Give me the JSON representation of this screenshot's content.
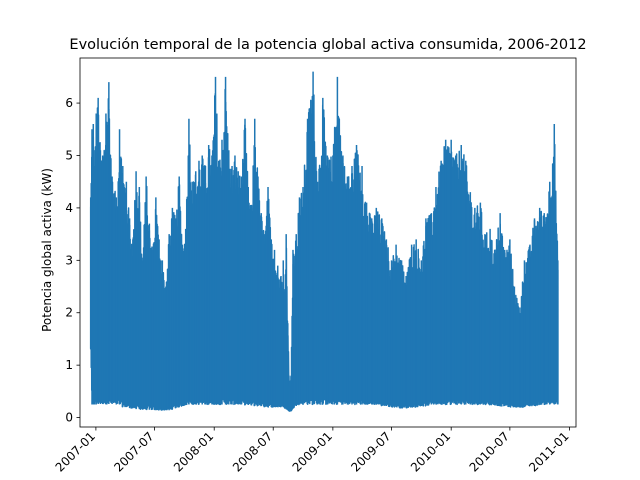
{
  "chart_data": {
    "type": "line",
    "title": "Evolución temporal de la potencia global activa consumida, 2006-2012",
    "xlabel": "",
    "ylabel": "Potencia global activa (kW)",
    "xlim": [
      "2006-11-13",
      "2011-01-21"
    ],
    "ylim": [
      -0.18,
      6.86
    ],
    "x_ticks": [
      "2007-01",
      "2007-07",
      "2008-01",
      "2008-07",
      "2009-01",
      "2009-07",
      "2010-01",
      "2010-07",
      "2011-01"
    ],
    "y_ticks": [
      0,
      1,
      2,
      3,
      4,
      5,
      6
    ],
    "grid": false,
    "legend": "none",
    "colors": {
      "line": "#1f77b4"
    },
    "series": [
      {
        "x": [
          "2006-12-16",
          "2006-12-20",
          "2006-12-24",
          "2006-12-28",
          "2007-01-02",
          "2007-01-08",
          "2007-01-15",
          "2007-01-22",
          "2007-02-01",
          "2007-02-10",
          "2007-02-20",
          "2007-03-05",
          "2007-03-15",
          "2007-03-25",
          "2007-04-05",
          "2007-04-15",
          "2007-04-25",
          "2007-05-05",
          "2007-05-15",
          "2007-05-25",
          "2007-06-05",
          "2007-06-15",
          "2007-06-25",
          "2007-07-05",
          "2007-07-15",
          "2007-07-25",
          "2007-08-05",
          "2007-08-15",
          "2007-08-25",
          "2007-09-05",
          "2007-09-15",
          "2007-09-25",
          "2007-10-05",
          "2007-10-15",
          "2007-10-25",
          "2007-11-05",
          "2007-11-15",
          "2007-11-25",
          "2007-12-05",
          "2007-12-15",
          "2007-12-25",
          "2008-01-05",
          "2008-01-15",
          "2008-01-25",
          "2008-02-05",
          "2008-02-15",
          "2008-02-25",
          "2008-03-05",
          "2008-03-15",
          "2008-03-25",
          "2008-04-05",
          "2008-04-15",
          "2008-04-25",
          "2008-05-05",
          "2008-05-15",
          "2008-05-25",
          "2008-06-05",
          "2008-06-15",
          "2008-06-25",
          "2008-07-05",
          "2008-07-15",
          "2008-07-25",
          "2008-08-01",
          "2008-08-05",
          "2008-08-10",
          "2008-08-15",
          "2008-08-20",
          "2008-08-25",
          "2008-08-31",
          "2008-09-10",
          "2008-09-20",
          "2008-10-01",
          "2008-10-15",
          "2008-11-01",
          "2008-11-15",
          "2008-12-01",
          "2008-12-15",
          "2009-01-01",
          "2009-01-15",
          "2009-02-01",
          "2009-02-15",
          "2009-03-01",
          "2009-03-15",
          "2009-04-01",
          "2009-04-15",
          "2009-05-01",
          "2009-05-15",
          "2009-06-01",
          "2009-06-15",
          "2009-07-01",
          "2009-07-15",
          "2009-08-01",
          "2009-08-15",
          "2009-09-01",
          "2009-09-15",
          "2009-10-01",
          "2009-10-15",
          "2009-11-01",
          "2009-11-15",
          "2009-12-01",
          "2009-12-15",
          "2010-01-01",
          "2010-01-15",
          "2010-02-01",
          "2010-02-15",
          "2010-03-01",
          "2010-03-15",
          "2010-04-01",
          "2010-04-15",
          "2010-05-01",
          "2010-05-15",
          "2010-06-01",
          "2010-06-15",
          "2010-07-01",
          "2010-07-15",
          "2010-08-01",
          "2010-08-15",
          "2010-09-01",
          "2010-09-15",
          "2010-10-01",
          "2010-10-15",
          "2010-11-01",
          "2010-11-15",
          "2010-11-26"
        ],
        "min": [
          1.3,
          0.25,
          0.25,
          0.25,
          0.25,
          0.26,
          0.26,
          0.26,
          0.26,
          0.26,
          0.26,
          0.25,
          0.25,
          0.2,
          0.2,
          0.18,
          0.18,
          0.16,
          0.16,
          0.15,
          0.15,
          0.15,
          0.15,
          0.14,
          0.14,
          0.14,
          0.14,
          0.14,
          0.16,
          0.18,
          0.2,
          0.22,
          0.24,
          0.25,
          0.25,
          0.25,
          0.25,
          0.25,
          0.25,
          0.25,
          0.25,
          0.25,
          0.25,
          0.25,
          0.25,
          0.25,
          0.25,
          0.25,
          0.25,
          0.25,
          0.24,
          0.24,
          0.23,
          0.22,
          0.22,
          0.22,
          0.2,
          0.2,
          0.2,
          0.2,
          0.2,
          0.2,
          0.2,
          0.18,
          0.16,
          0.14,
          0.12,
          0.12,
          0.18,
          0.22,
          0.25,
          0.25,
          0.25,
          0.25,
          0.25,
          0.25,
          0.25,
          0.25,
          0.25,
          0.25,
          0.25,
          0.25,
          0.25,
          0.25,
          0.25,
          0.25,
          0.25,
          0.22,
          0.22,
          0.2,
          0.2,
          0.18,
          0.18,
          0.2,
          0.2,
          0.22,
          0.22,
          0.25,
          0.25,
          0.25,
          0.25,
          0.25,
          0.25,
          0.25,
          0.25,
          0.25,
          0.25,
          0.25,
          0.25,
          0.24,
          0.24,
          0.22,
          0.22,
          0.2,
          0.2,
          0.2,
          0.2,
          0.22,
          0.22,
          0.25,
          0.25,
          0.25,
          0.25,
          0.25
        ],
        "max": [
          4.2,
          5.5,
          5.6,
          4.8,
          5.8,
          6.1,
          5.1,
          5.0,
          5.8,
          6.4,
          4.6,
          4.2,
          5.5,
          4.8,
          4.5,
          3.8,
          3.4,
          4.7,
          4.4,
          3.0,
          4.6,
          3.7,
          3.2,
          4.2,
          3.4,
          3.0,
          2.5,
          3.5,
          4.0,
          3.8,
          4.6,
          3.3,
          3.6,
          5.7,
          4.5,
          4.7,
          4.9,
          5.0,
          4.8,
          5.2,
          5.0,
          6.5,
          4.9,
          5.3,
          6.5,
          5.1,
          4.8,
          5.0,
          4.7,
          4.6,
          5.7,
          4.4,
          4.0,
          5.7,
          4.6,
          3.9,
          3.5,
          4.4,
          3.4,
          3.2,
          2.9,
          2.7,
          3.0,
          2.4,
          3.5,
          1.8,
          0.6,
          0.8,
          3.2,
          3.5,
          4.2,
          4.4,
          5.7,
          6.6,
          4.5,
          6.1,
          5.0,
          5.0,
          6.5,
          5.0,
          4.6,
          4.8,
          5.2,
          4.8,
          4.1,
          3.8,
          4.0,
          3.8,
          3.4,
          3.0,
          3.3,
          3.0,
          2.7,
          3.3,
          3.4,
          3.0,
          3.8,
          3.9,
          4.4,
          4.9,
          5.3,
          5.3,
          5.0,
          5.2,
          4.9,
          4.3,
          4.0,
          4.1,
          3.5,
          3.6,
          3.2,
          3.9,
          3.2,
          3.4,
          2.5,
          2.1,
          3.0,
          3.3,
          3.8,
          4.0,
          3.9,
          4.5,
          5.6,
          3.0
        ]
      }
    ]
  }
}
